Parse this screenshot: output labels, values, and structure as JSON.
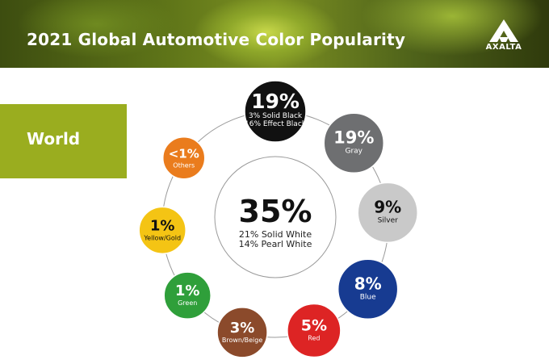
{
  "title": "2021 Global Automotive Color Popularity",
  "brand": "AXALTA",
  "region": "World",
  "chart_data": {
    "type": "pie",
    "title": "2021 Global Automotive Color Popularity",
    "center": {
      "value": "35%",
      "lines": [
        "21% Solid White",
        "14% Pearl White"
      ]
    },
    "slices": [
      {
        "value": "19%",
        "lines": [
          "3% Solid Black",
          "16% Effect Black"
        ],
        "color": "#111111"
      },
      {
        "value": "19%",
        "lines": [
          "Gray"
        ],
        "color": "#6e6f71"
      },
      {
        "value": "9%",
        "lines": [
          "Silver"
        ],
        "color": "#c9c9c9"
      },
      {
        "value": "8%",
        "lines": [
          "Blue"
        ],
        "color": "#173b91"
      },
      {
        "value": "5%",
        "lines": [
          "Red"
        ],
        "color": "#dd2424"
      },
      {
        "value": "3%",
        "lines": [
          "Brown/Beige"
        ],
        "color": "#8b4a2b"
      },
      {
        "value": "1%",
        "lines": [
          "Green"
        ],
        "color": "#2f9f3a"
      },
      {
        "value": "1%",
        "lines": [
          "Yellow/Gold"
        ],
        "color": "#f4c414"
      },
      {
        "value": "<1%",
        "lines": [
          "Others"
        ],
        "color": "#ea7c1d"
      }
    ]
  }
}
